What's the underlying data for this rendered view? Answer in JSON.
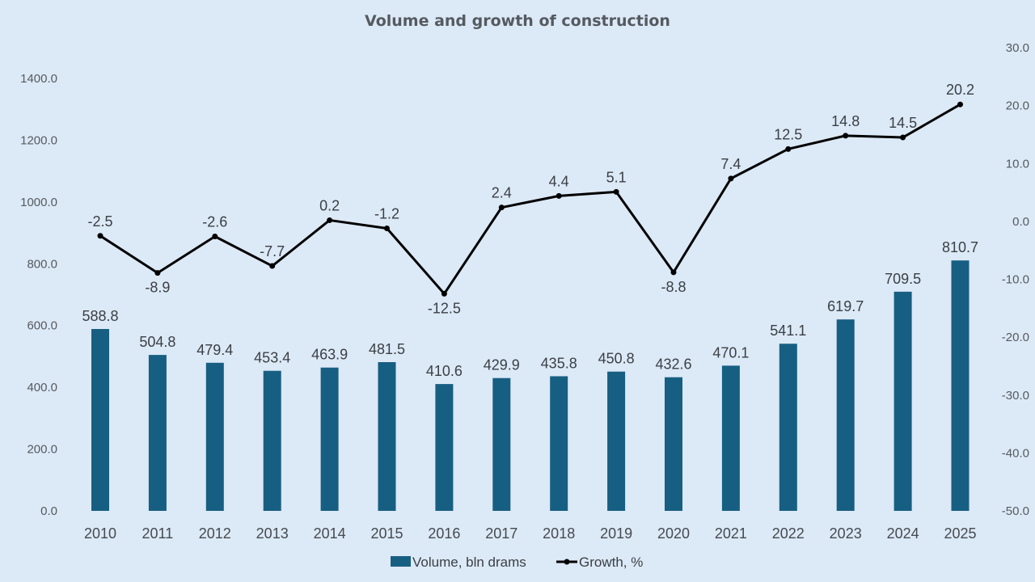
{
  "chart_data": {
    "type": "bar",
    "title": "Volume and growth of construction",
    "categories": [
      "2010",
      "2011",
      "2012",
      "2013",
      "2014",
      "2015",
      "2016",
      "2017",
      "2018",
      "2019",
      "2020",
      "2021",
      "2022",
      "2023",
      "2024",
      "2025"
    ],
    "series": [
      {
        "name": "Volume, bln drams",
        "type": "bar",
        "axis": "left",
        "color": "#175f82",
        "values": [
          588.8,
          504.8,
          479.4,
          453.4,
          463.9,
          481.5,
          410.6,
          429.9,
          435.8,
          450.8,
          432.6,
          470.1,
          541.1,
          619.7,
          709.5,
          810.7
        ],
        "labels": [
          "588.8",
          "504.8",
          "479.4",
          "453.4",
          "463.9",
          "481.5",
          "410.6",
          "429.9",
          "435.8",
          "450.8",
          "432.6",
          "470.1",
          "541.1",
          "619.7",
          "709.5",
          "810.7"
        ]
      },
      {
        "name": "Growth, %",
        "type": "line",
        "axis": "right",
        "color": "#000000",
        "values": [
          -2.5,
          -8.9,
          -2.6,
          -7.7,
          0.2,
          -1.2,
          -12.5,
          2.4,
          4.4,
          5.1,
          -8.8,
          7.4,
          12.5,
          14.8,
          14.5,
          20.2
        ],
        "labels": [
          "-2.5",
          "-8.9",
          "-2.6",
          "-7.7",
          "0.2",
          "-1.2",
          "-12.5",
          "2.4",
          "4.4",
          "5.1",
          "-8.8",
          "7.4",
          "12.5",
          "14.8",
          "14.5",
          "20.2"
        ]
      }
    ],
    "highlight": {
      "index": 15,
      "color": "#e8141c"
    },
    "left_axis": {
      "min": 0,
      "max": 1400,
      "ticks": [
        "0.0",
        "200.0",
        "400.0",
        "600.0",
        "800.0",
        "1000.0",
        "1200.0",
        "1400.0"
      ],
      "tick_values": [
        0,
        200,
        400,
        600,
        800,
        1000,
        1200,
        1400
      ]
    },
    "right_axis": {
      "min": -50,
      "max": 30,
      "ticks": [
        "-50.0",
        "-40.0",
        "-30.0",
        "-20.0",
        "-10.0",
        "0.0",
        "10.0",
        "20.0",
        "30.0"
      ],
      "tick_values": [
        -50,
        -40,
        -30,
        -20,
        -10,
        0,
        10,
        20,
        30
      ]
    },
    "grid": false,
    "legend_position": "bottom",
    "label_positions": [
      "above",
      "below",
      "above",
      "above",
      "above",
      "above",
      "below",
      "above",
      "above",
      "above",
      "below",
      "above",
      "above",
      "above",
      "above",
      "above"
    ]
  }
}
